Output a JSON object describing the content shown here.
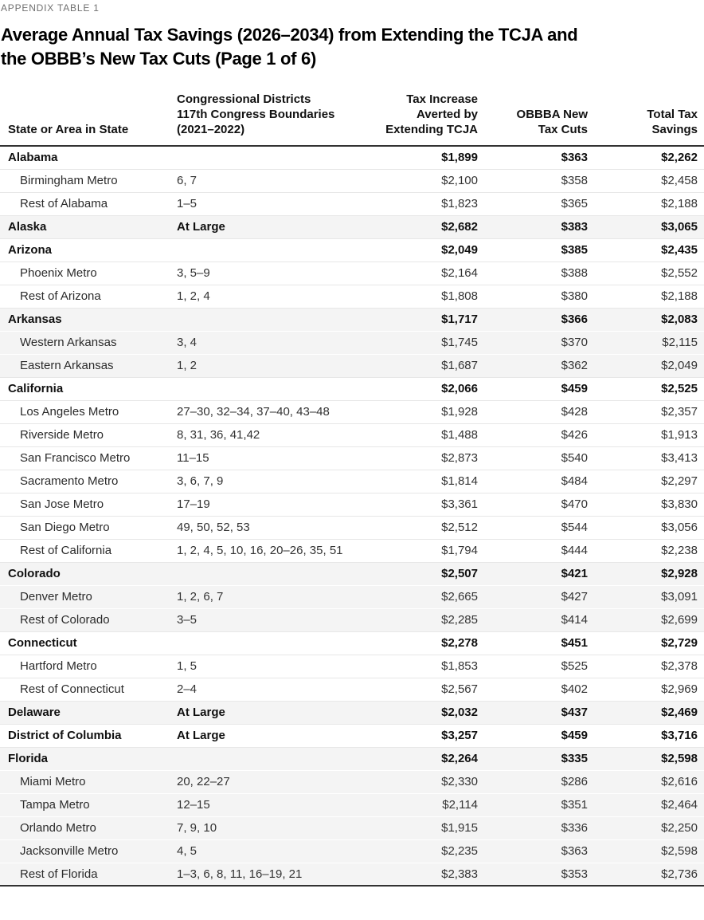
{
  "header": {
    "eyebrow": "APPENDIX TABLE 1",
    "title_line1": "Average Annual Tax Savings (2026–2034) from Extending the TCJA and",
    "title_line2": "the OBBB’s New Tax Cuts (Page 1 of 6)"
  },
  "colors": {
    "shaded_row_bg": "#f4f4f4",
    "row_divider": "#e7e7e7",
    "header_rule": "#333333",
    "eyebrow_text": "#6f6f6f",
    "body_text": "#333333"
  },
  "table": {
    "columns": [
      {
        "label": "State or Area in State",
        "align": "left"
      },
      {
        "label": "Congressional Districts\n117th Congress Boundaries\n(2021–2022)",
        "align": "left"
      },
      {
        "label": "Tax Increase\nAverted by\nExtending TCJA",
        "align": "right"
      },
      {
        "label": "OBBBA New\nTax Cuts",
        "align": "right"
      },
      {
        "label": "Total Tax\nSavings",
        "align": "right"
      }
    ],
    "groups": [
      {
        "state": "Alabama",
        "districts": "",
        "tcja": "$1,899",
        "obbba": "$363",
        "total": "$2,262",
        "areas": [
          {
            "name": "Birmingham Metro",
            "districts": "6, 7",
            "tcja": "$2,100",
            "obbba": "$358",
            "total": "$2,458"
          },
          {
            "name": "Rest of Alabama",
            "districts": "1–5",
            "tcja": "$1,823",
            "obbba": "$365",
            "total": "$2,188"
          }
        ]
      },
      {
        "state": "Alaska",
        "districts": "At Large",
        "tcja": "$2,682",
        "obbba": "$383",
        "total": "$3,065",
        "areas": []
      },
      {
        "state": "Arizona",
        "districts": "",
        "tcja": "$2,049",
        "obbba": "$385",
        "total": "$2,435",
        "areas": [
          {
            "name": "Phoenix Metro",
            "districts": "3, 5–9",
            "tcja": "$2,164",
            "obbba": "$388",
            "total": "$2,552"
          },
          {
            "name": "Rest of Arizona",
            "districts": "1, 2, 4",
            "tcja": "$1,808",
            "obbba": "$380",
            "total": "$2,188"
          }
        ]
      },
      {
        "state": "Arkansas",
        "districts": "",
        "tcja": "$1,717",
        "obbba": "$366",
        "total": "$2,083",
        "areas": [
          {
            "name": "Western Arkansas",
            "districts": "3, 4",
            "tcja": "$1,745",
            "obbba": "$370",
            "total": "$2,115"
          },
          {
            "name": "Eastern Arkansas",
            "districts": "1, 2",
            "tcja": "$1,687",
            "obbba": "$362",
            "total": "$2,049"
          }
        ]
      },
      {
        "state": "California",
        "districts": "",
        "tcja": "$2,066",
        "obbba": "$459",
        "total": "$2,525",
        "areas": [
          {
            "name": "Los Angeles Metro",
            "districts": "27–30, 32–34, 37–40, 43–48",
            "tcja": "$1,928",
            "obbba": "$428",
            "total": "$2,357"
          },
          {
            "name": "Riverside Metro",
            "districts": "8, 31, 36, 41,42",
            "tcja": "$1,488",
            "obbba": "$426",
            "total": "$1,913"
          },
          {
            "name": "San Francisco Metro",
            "districts": "11–15",
            "tcja": "$2,873",
            "obbba": "$540",
            "total": "$3,413"
          },
          {
            "name": "Sacramento Metro",
            "districts": "3, 6, 7, 9",
            "tcja": "$1,814",
            "obbba": "$484",
            "total": "$2,297"
          },
          {
            "name": "San Jose Metro",
            "districts": "17–19",
            "tcja": "$3,361",
            "obbba": "$470",
            "total": "$3,830"
          },
          {
            "name": "San Diego Metro",
            "districts": "49, 50, 52, 53",
            "tcja": "$2,512",
            "obbba": "$544",
            "total": "$3,056"
          },
          {
            "name": "Rest of California",
            "districts": "1, 2, 4, 5, 10, 16, 20–26, 35, 51",
            "tcja": "$1,794",
            "obbba": "$444",
            "total": "$2,238"
          }
        ]
      },
      {
        "state": "Colorado",
        "districts": "",
        "tcja": "$2,507",
        "obbba": "$421",
        "total": "$2,928",
        "areas": [
          {
            "name": "Denver Metro",
            "districts": "1, 2, 6, 7",
            "tcja": "$2,665",
            "obbba": "$427",
            "total": "$3,091"
          },
          {
            "name": "Rest of Colorado",
            "districts": "3–5",
            "tcja": "$2,285",
            "obbba": "$414",
            "total": "$2,699"
          }
        ]
      },
      {
        "state": "Connecticut",
        "districts": "",
        "tcja": "$2,278",
        "obbba": "$451",
        "total": "$2,729",
        "areas": [
          {
            "name": "Hartford Metro",
            "districts": "1, 5",
            "tcja": "$1,853",
            "obbba": "$525",
            "total": "$2,378"
          },
          {
            "name": "Rest of Connecticut",
            "districts": "2–4",
            "tcja": "$2,567",
            "obbba": "$402",
            "total": "$2,969"
          }
        ]
      },
      {
        "state": "Delaware",
        "districts": "At Large",
        "tcja": "$2,032",
        "obbba": "$437",
        "total": "$2,469",
        "areas": []
      },
      {
        "state": "District of Columbia",
        "districts": "At Large",
        "tcja": "$3,257",
        "obbba": "$459",
        "total": "$3,716",
        "areas": []
      },
      {
        "state": "Florida",
        "districts": "",
        "tcja": "$2,264",
        "obbba": "$335",
        "total": "$2,598",
        "areas": [
          {
            "name": "Miami Metro",
            "districts": "20, 22–27",
            "tcja": "$2,330",
            "obbba": "$286",
            "total": "$2,616"
          },
          {
            "name": "Tampa Metro",
            "districts": "12–15",
            "tcja": "$2,114",
            "obbba": "$351",
            "total": "$2,464"
          },
          {
            "name": "Orlando Metro",
            "districts": "7, 9, 10",
            "tcja": "$1,915",
            "obbba": "$336",
            "total": "$2,250"
          },
          {
            "name": "Jacksonville Metro",
            "districts": "4, 5",
            "tcja": "$2,235",
            "obbba": "$363",
            "total": "$2,598"
          },
          {
            "name": "Rest of Florida",
            "districts": "1–3, 6, 8, 11, 16–19, 21",
            "tcja": "$2,383",
            "obbba": "$353",
            "total": "$2,736"
          }
        ]
      }
    ]
  }
}
